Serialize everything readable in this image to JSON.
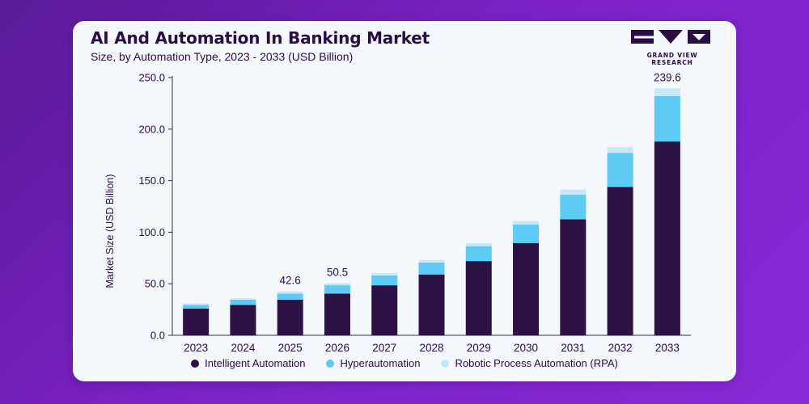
{
  "header": {
    "title": "AI And Automation In Banking Market",
    "subtitle": "Size, by Automation Type, 2023 - 2033 (USD Billion)"
  },
  "brand": {
    "logo_text": "GRAND VIEW RESEARCH",
    "logo_icon": "grand-view-research-logo"
  },
  "colors": {
    "intelligent_automation": "#2d1245",
    "hyperautomation": "#5ecbf4",
    "rpa": "#c6e9f8",
    "text": "#2b0d45"
  },
  "chart_data": {
    "type": "bar",
    "stacked": true,
    "title": "AI And Automation In Banking Market",
    "subtitle": "Size, by Automation Type, 2023 - 2033 (USD Billion)",
    "xlabel": "",
    "ylabel": "Market Size (USD Billion)",
    "ylim": [
      0,
      250
    ],
    "yticks": [
      "0.0",
      "50.0",
      "100.0",
      "150.0",
      "200.0",
      "250.0"
    ],
    "categories": [
      "2023",
      "2024",
      "2025",
      "2026",
      "2027",
      "2028",
      "2029",
      "2030",
      "2031",
      "2032",
      "2033"
    ],
    "series": [
      {
        "name": "Intelligent Automation",
        "values": [
          26,
          29.5,
          34.5,
          40.5,
          48.5,
          59,
          72,
          89.5,
          112.5,
          144,
          188
        ]
      },
      {
        "name": "Hyperautomation",
        "values": [
          3.5,
          5,
          6,
          8,
          9.5,
          11.5,
          14.5,
          18,
          24,
          33,
          44
        ]
      },
      {
        "name": "Robotic Process Automation (RPA)",
        "values": [
          1.5,
          1.5,
          2.1,
          2,
          2.5,
          2.5,
          3,
          3.5,
          5,
          5.5,
          7.6
        ]
      }
    ],
    "data_labels": [
      {
        "category": "2025",
        "text": "42.6"
      },
      {
        "category": "2026",
        "text": "50.5"
      },
      {
        "category": "2033",
        "text": "239.6"
      }
    ],
    "grid": false,
    "legend_position": "bottom"
  }
}
